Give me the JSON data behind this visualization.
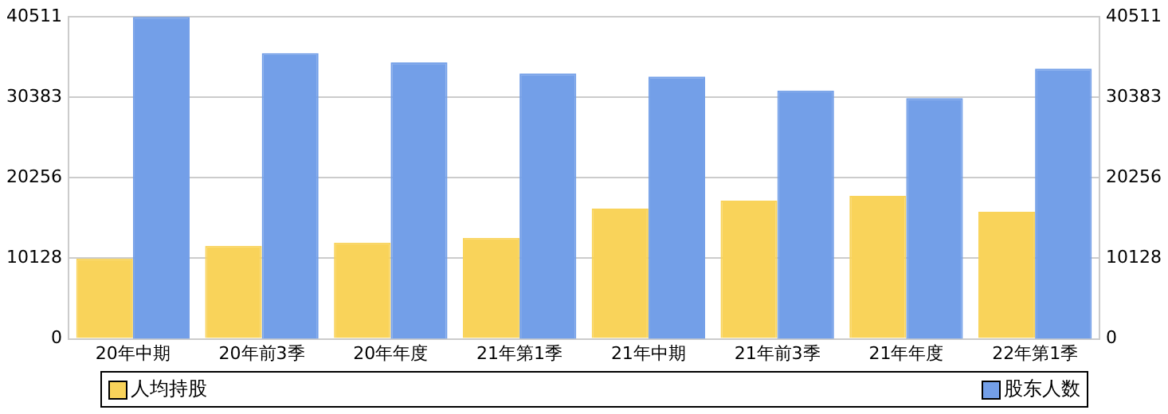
{
  "chart_data": {
    "type": "bar",
    "categories": [
      "20年中期",
      "20年前3季",
      "20年年度",
      "21年第1季",
      "21年中期",
      "21年前3季",
      "21年年度",
      "22年第1季"
    ],
    "series": [
      {
        "name": "人均持股",
        "color": "#f9d35a",
        "values": [
          10100,
          11700,
          12100,
          12700,
          16400,
          17400,
          18000,
          16000
        ]
      },
      {
        "name": "股东人数",
        "color": "#739fe8",
        "axis": "y2",
        "values": [
          40511,
          35950,
          34800,
          33400,
          33000,
          31250,
          30300,
          34000
        ]
      }
    ],
    "ylim": [
      0,
      40511
    ],
    "yticks": [
      0,
      10128,
      20256,
      30383,
      40511
    ],
    "y2lim": [
      0,
      40511
    ],
    "y2ticks": [
      0,
      10128,
      20256,
      30383,
      40511
    ],
    "grid": "y",
    "legend": "bottom"
  }
}
